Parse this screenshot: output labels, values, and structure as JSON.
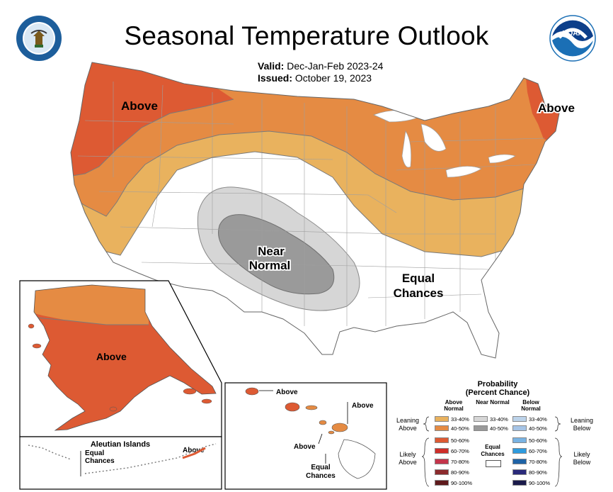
{
  "header": {
    "title": "Seasonal Temperature Outlook",
    "valid_label": "Valid:",
    "valid_value": "Dec-Jan-Feb 2023-24",
    "issued_label": "Issued:",
    "issued_value": "October 19, 2023"
  },
  "logos": {
    "commerce_seal": "department-of-commerce-seal-icon",
    "noaa_logo_text": "NOAA"
  },
  "map_labels": {
    "conus_above_west": "Above",
    "conus_above_northeast": "Above",
    "conus_near_normal_line1": "Near",
    "conus_near_normal_line2": "Normal",
    "conus_equal_line1": "Equal",
    "conus_equal_line2": "Chances",
    "alaska_above": "Above",
    "aleutian_title": "Aleutian Islands",
    "aleutian_equal_line1": "Equal",
    "aleutian_equal_line2": "Chances",
    "aleutian_above": "Above",
    "hawaii_above_1": "Above",
    "hawaii_above_2": "Above",
    "hawaii_above_3": "Above",
    "hawaii_equal_line1": "Equal",
    "hawaii_equal_line2": "Chances"
  },
  "legend": {
    "title_line1": "Probability",
    "title_line2": "(Percent Chance)",
    "col_above": "Above Normal",
    "col_near": "Near Normal",
    "col_below": "Below Normal",
    "above_rows": [
      "33-40%",
      "40-50%",
      "50-60%",
      "60-70%",
      "70-80%",
      "80-90%",
      "90-100%"
    ],
    "near_rows": [
      "33-40%",
      "40-50%"
    ],
    "below_rows": [
      "33-40%",
      "40-50%",
      "50-60%",
      "60-70%",
      "70-80%",
      "80-90%",
      "90-100%"
    ],
    "equal_chances_line1": "Equal",
    "equal_chances_line2": "Chances",
    "leaning_above_1": "Leaning",
    "leaning_above_2": "Above",
    "likely_above_1": "Likely",
    "likely_above_2": "Above",
    "leaning_below_1": "Leaning",
    "leaning_below_2": "Below",
    "likely_below_1": "Likely",
    "likely_below_2": "Below"
  },
  "colors": {
    "above_33_40": "#e9b25e",
    "above_40_50": "#e58b43",
    "above_50_60": "#dd5a33",
    "above_60_70": "#cf2f2a",
    "above_70_80": "#c4354b",
    "above_80_90": "#8c2b2d",
    "above_90_100": "#5e1a1c",
    "near_33_40": "#d6d6d6",
    "near_40_50": "#9a9a9a",
    "below_33_40": "#bcd3ea",
    "below_40_50": "#a6c4e6",
    "below_50_60": "#79b3e3",
    "below_60_70": "#2f9bde",
    "below_70_80": "#1f63a6",
    "below_80_90": "#2a2a7a",
    "below_90_100": "#1a1a4a",
    "noaa_blue": "#1b6fb5"
  }
}
